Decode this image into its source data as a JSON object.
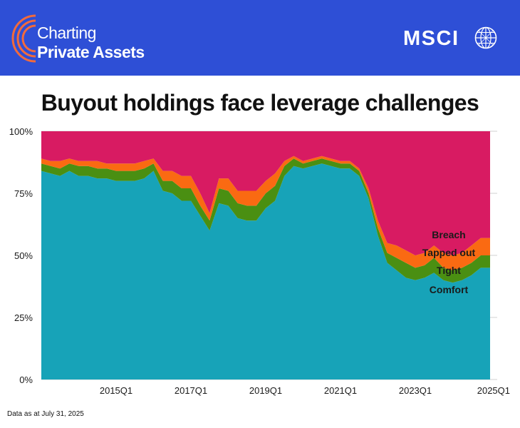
{
  "header": {
    "brand_line1": "Charting",
    "brand_line2": "Private Assets",
    "company": "MSCI",
    "icons": [
      "arcs-logo-icon",
      "globe-icon"
    ]
  },
  "footnote": "Data as at July 31, 2025",
  "colors": {
    "header_bg": "#2e4fd6",
    "comfort": "#17a3b8",
    "tight": "#4a8f12",
    "tapped_out": "#fa6a12",
    "breach": "#d81b62",
    "logo_arcs": "#f26a3c"
  },
  "chart_data": {
    "type": "area",
    "stacked": true,
    "title": "Buyout holdings face leverage challenges",
    "xlabel": "",
    "ylabel": "",
    "ylim": [
      0,
      100
    ],
    "y_ticks": [
      0,
      25,
      50,
      75,
      100
    ],
    "y_tick_labels": [
      "0%",
      "25%",
      "50%",
      "75%",
      "100%"
    ],
    "x_tick_labels": [
      "2015Q1",
      "2017Q1",
      "2019Q1",
      "2021Q1",
      "2023Q1",
      "2025Q1"
    ],
    "x_tick_indices": [
      8,
      16,
      24,
      32,
      40,
      48
    ],
    "x": [
      "2013Q1",
      "2013Q2",
      "2013Q3",
      "2013Q4",
      "2014Q1",
      "2014Q2",
      "2014Q3",
      "2014Q4",
      "2015Q1",
      "2015Q2",
      "2015Q3",
      "2015Q4",
      "2016Q1",
      "2016Q2",
      "2016Q3",
      "2016Q4",
      "2017Q1",
      "2017Q2",
      "2017Q3",
      "2017Q4",
      "2018Q1",
      "2018Q2",
      "2018Q3",
      "2018Q4",
      "2019Q1",
      "2019Q2",
      "2019Q3",
      "2019Q4",
      "2020Q1",
      "2020Q2",
      "2020Q3",
      "2020Q4",
      "2021Q1",
      "2021Q2",
      "2021Q3",
      "2021Q4",
      "2022Q1",
      "2022Q2",
      "2022Q3",
      "2022Q4",
      "2023Q1",
      "2023Q2",
      "2023Q3",
      "2023Q4",
      "2024Q1",
      "2024Q2",
      "2024Q3",
      "2024Q4",
      "2025Q1"
    ],
    "series": [
      {
        "name": "Comfort",
        "values": [
          84,
          83,
          82,
          84,
          82,
          82,
          81,
          81,
          80,
          80,
          80,
          81,
          84,
          76,
          75,
          72,
          72,
          66,
          60,
          71,
          70,
          65,
          64,
          64,
          69,
          72,
          82,
          86,
          85,
          86,
          87,
          86,
          85,
          85,
          82,
          73,
          58,
          47,
          44,
          41,
          40,
          41,
          43,
          40,
          39,
          40,
          42,
          45,
          45
        ]
      },
      {
        "name": "Tight",
        "values": [
          3,
          3,
          3,
          3,
          4,
          4,
          4,
          4,
          4,
          4,
          4,
          4,
          3,
          4,
          5,
          5,
          5,
          4,
          4,
          6,
          6,
          6,
          6,
          6,
          6,
          6,
          4,
          3,
          2,
          2,
          2,
          2,
          2,
          2,
          2,
          2,
          3,
          4,
          5,
          6,
          5,
          5,
          6,
          5,
          5,
          5,
          5,
          5,
          5
        ]
      },
      {
        "name": "Tapped out",
        "values": [
          2,
          2,
          3,
          2,
          2,
          2,
          3,
          2,
          3,
          3,
          3,
          3,
          2,
          4,
          4,
          5,
          5,
          5,
          3,
          4,
          5,
          5,
          6,
          6,
          5,
          5,
          2,
          1,
          1,
          1,
          1,
          1,
          1,
          1,
          1,
          2,
          3,
          4,
          5,
          5,
          5,
          5,
          5,
          6,
          6,
          6,
          7,
          7,
          7
        ]
      },
      {
        "name": "Breach",
        "values": [
          11,
          12,
          12,
          11,
          12,
          12,
          12,
          13,
          13,
          13,
          13,
          12,
          11,
          16,
          16,
          18,
          18,
          25,
          33,
          19,
          19,
          24,
          24,
          24,
          20,
          17,
          12,
          10,
          12,
          11,
          10,
          11,
          12,
          12,
          15,
          23,
          36,
          45,
          46,
          48,
          50,
          49,
          46,
          49,
          50,
          49,
          46,
          43,
          43
        ]
      }
    ],
    "series_labels": [
      "Breach",
      "Tapped out",
      "Tight",
      "Comfort"
    ]
  }
}
